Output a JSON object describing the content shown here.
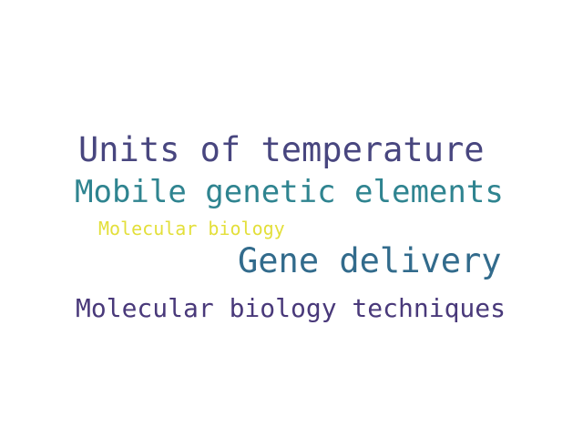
{
  "words": [
    {
      "text": "Units of temperature",
      "color": "#48467f"
    },
    {
      "text": "Mobile genetic elements",
      "color": "#2f8490"
    },
    {
      "text": "Molecular biology",
      "color": "#e3df3a"
    },
    {
      "text": "Gene delivery",
      "color": "#326b8c"
    },
    {
      "text": "Molecular biology techniques",
      "color": "#49397a"
    }
  ]
}
